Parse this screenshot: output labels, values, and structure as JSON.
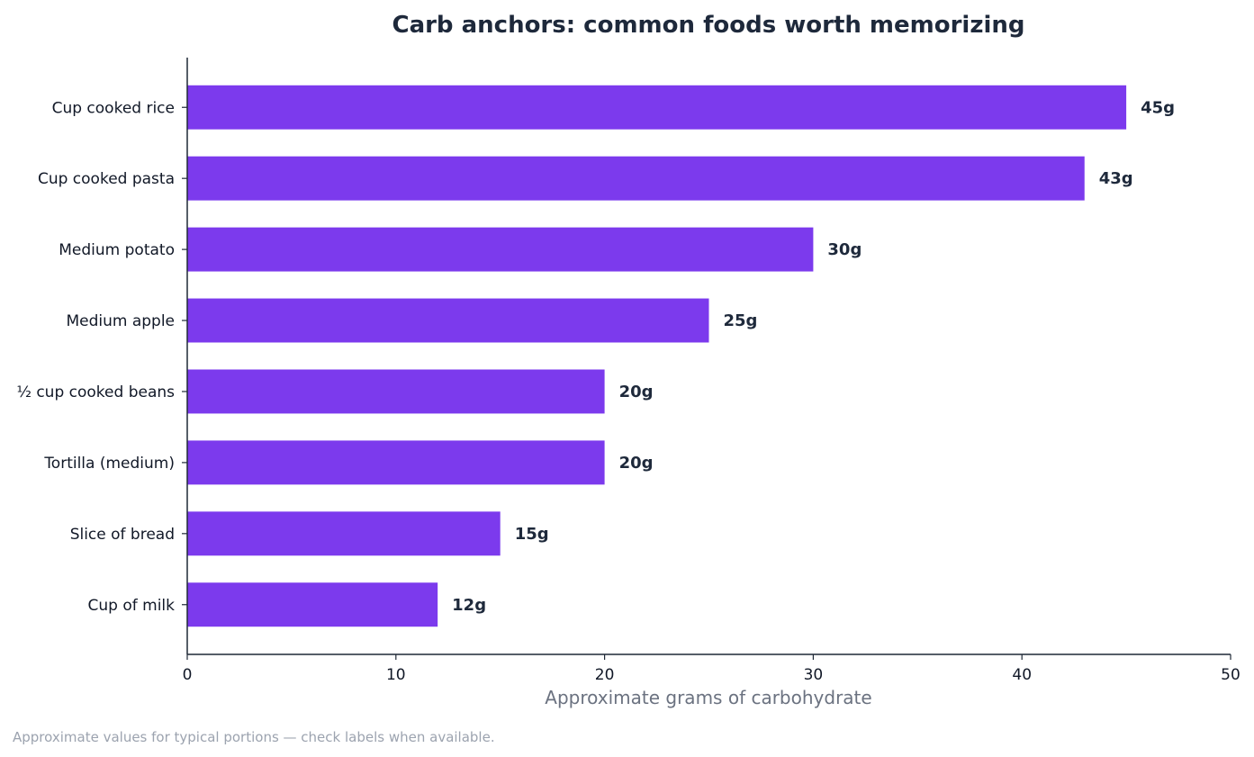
{
  "chart_data": {
    "type": "bar",
    "orientation": "horizontal",
    "title": "Carb anchors: common foods worth memorizing",
    "xlabel": "Approximate grams of carbohydrate",
    "ylabel": "",
    "categories": [
      "Cup cooked rice",
      "Cup cooked pasta",
      "Medium potato",
      "Medium apple",
      "½ cup cooked beans",
      "Tortilla (medium)",
      "Slice of bread",
      "Cup of milk"
    ],
    "values": [
      45,
      43,
      30,
      25,
      20,
      20,
      15,
      12
    ],
    "data_labels": [
      "45g",
      "43g",
      "30g",
      "25g",
      "20g",
      "20g",
      "15g",
      "12g"
    ],
    "xlim": [
      0,
      50
    ],
    "xticks": [
      0,
      10,
      20,
      30,
      40,
      50
    ],
    "grid": false,
    "bar_color": "#7c3aed"
  },
  "footnote": "Approximate values for typical portions — check labels when available."
}
